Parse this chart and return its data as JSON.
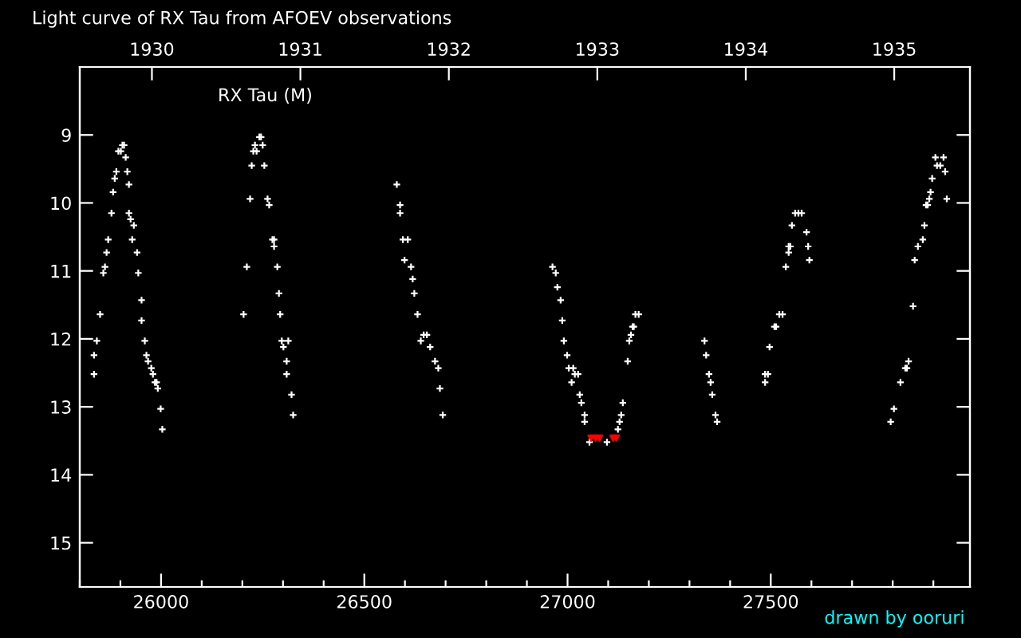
{
  "chart_data": {
    "type": "scatter",
    "title": "Light curve of RX Tau from AFOEV observations",
    "annotations": [
      "RX Tau (M)",
      "drawn by ooruri"
    ],
    "series": [
      {
        "color": "#ffffff",
        "marker": "cross",
        "x": [
          25835,
          25835,
          25842,
          25850,
          25858,
          25862,
          25866,
          25870,
          25878,
          25882,
          25886,
          25890,
          25895,
          25901,
          25905,
          25909,
          25913,
          25917,
          25921,
          25921,
          25925,
          25933,
          25929,
          25941,
          25944,
          25952,
          25952,
          25960,
          25964,
          25968,
          25976,
          25980,
          25985,
          25989,
          25992,
          25999,
          26003,
          26203,
          26211,
          26219,
          26223,
          26227,
          26231,
          26235,
          26242,
          26246,
          26250,
          26254,
          26262,
          26266,
          26274,
          26278,
          26278,
          26286,
          26290,
          26293,
          26297,
          26301,
          26313,
          26309,
          26309,
          26321,
          26325,
          26580,
          26588,
          26588,
          26595,
          26607,
          26599,
          26615,
          26619,
          26623,
          26631,
          26639,
          26646,
          26654,
          26662,
          26674,
          26682,
          26686,
          26693,
          26963,
          26971,
          26975,
          26983,
          26987,
          26991,
          26999,
          27003,
          27014,
          27018,
          27026,
          27010,
          27030,
          27034,
          27042,
          27042,
          27054,
          27097,
          27124,
          27128,
          27132,
          27136,
          27148,
          27152,
          27156,
          27160,
          27163,
          27167,
          27175,
          27337,
          27341,
          27348,
          27352,
          27356,
          27364,
          27368,
          27486,
          27486,
          27493,
          27497,
          27509,
          27513,
          27521,
          27529,
          27537,
          27544,
          27544,
          27548,
          27552,
          27560,
          27568,
          27576,
          27588,
          27592,
          27595,
          27795,
          27803,
          27819,
          27831,
          27835,
          27839,
          27850,
          27854,
          27862,
          27874,
          27878,
          27882,
          27886,
          27890,
          27893,
          27897,
          27905,
          27909,
          27917,
          27925,
          27929,
          27933
        ],
        "values": [
          12.52,
          12.24,
          12.03,
          11.64,
          11.03,
          10.94,
          10.73,
          10.54,
          10.15,
          9.84,
          9.64,
          9.54,
          9.24,
          9.24,
          9.15,
          9.15,
          9.33,
          9.54,
          9.73,
          10.15,
          10.24,
          10.33,
          10.54,
          10.73,
          11.03,
          11.43,
          11.73,
          12.03,
          12.24,
          12.33,
          12.43,
          12.52,
          12.64,
          12.64,
          12.73,
          13.03,
          13.33,
          11.64,
          10.94,
          9.94,
          9.45,
          9.24,
          9.15,
          9.24,
          9.03,
          9.03,
          9.15,
          9.45,
          9.94,
          10.03,
          10.54,
          10.54,
          10.64,
          10.94,
          11.33,
          11.64,
          12.03,
          12.12,
          12.03,
          12.33,
          12.52,
          12.82,
          13.12,
          9.73,
          10.03,
          10.15,
          10.54,
          10.54,
          10.84,
          10.94,
          11.12,
          11.33,
          11.64,
          12.03,
          11.94,
          11.94,
          12.12,
          12.33,
          12.43,
          12.73,
          13.12,
          10.94,
          11.03,
          11.24,
          11.43,
          11.73,
          12.03,
          12.24,
          12.43,
          12.43,
          12.52,
          12.52,
          12.64,
          12.82,
          12.94,
          13.12,
          13.22,
          13.52,
          13.52,
          13.33,
          13.22,
          13.12,
          12.94,
          12.33,
          12.03,
          11.94,
          11.82,
          11.82,
          11.64,
          11.64,
          12.03,
          12.24,
          12.52,
          12.64,
          12.82,
          13.12,
          13.22,
          12.64,
          12.52,
          12.52,
          12.12,
          11.82,
          11.82,
          11.64,
          11.64,
          10.94,
          10.73,
          10.64,
          10.64,
          10.33,
          10.15,
          10.15,
          10.15,
          10.43,
          10.64,
          10.84,
          13.22,
          13.03,
          12.64,
          12.43,
          12.43,
          12.33,
          11.52,
          10.84,
          10.64,
          10.54,
          10.33,
          10.03,
          10.03,
          9.94,
          9.84,
          9.64,
          9.33,
          9.45,
          9.45,
          9.33,
          9.54,
          9.94
        ]
      },
      {
        "color": "#ff0000",
        "marker": "triangle",
        "x": [
          27058,
          27069,
          27079,
          27112,
          27120
        ],
        "values": [
          13.46,
          13.46,
          13.46,
          13.46,
          13.46
        ]
      }
    ],
    "xlim": [
      25800,
      27990
    ],
    "ylim": [
      15.65,
      8
    ],
    "xticks": [
      {
        "value": 25800,
        "label": null
      },
      {
        "value": 25900,
        "label": null
      },
      26000,
      {
        "value": 26100,
        "label": null
      },
      {
        "value": 26200,
        "label": null
      },
      {
        "value": 26300,
        "label": null
      },
      {
        "value": 26400,
        "label": null
      },
      26500,
      {
        "value": 26600,
        "label": null
      },
      {
        "value": 26700,
        "label": null
      },
      {
        "value": 26800,
        "label": null
      },
      {
        "value": 26900,
        "label": null
      },
      27000,
      {
        "value": 27100,
        "label": null
      },
      {
        "value": 27200,
        "label": null
      },
      {
        "value": 27300,
        "label": null
      },
      {
        "value": 27400,
        "label": null
      },
      27500,
      {
        "value": 27600,
        "label": null
      },
      {
        "value": 27700,
        "label": null
      },
      {
        "value": 27800,
        "label": null
      },
      {
        "value": 27900,
        "label": null
      }
    ],
    "yticks": [
      9,
      10,
      11,
      12,
      13,
      14,
      15
    ],
    "x2lim": [
      1929.514,
      1935.51
    ],
    "x2ticks": [
      1930,
      1931,
      1932,
      1933,
      1934,
      1935
    ],
    "grid": false,
    "legend": false
  }
}
